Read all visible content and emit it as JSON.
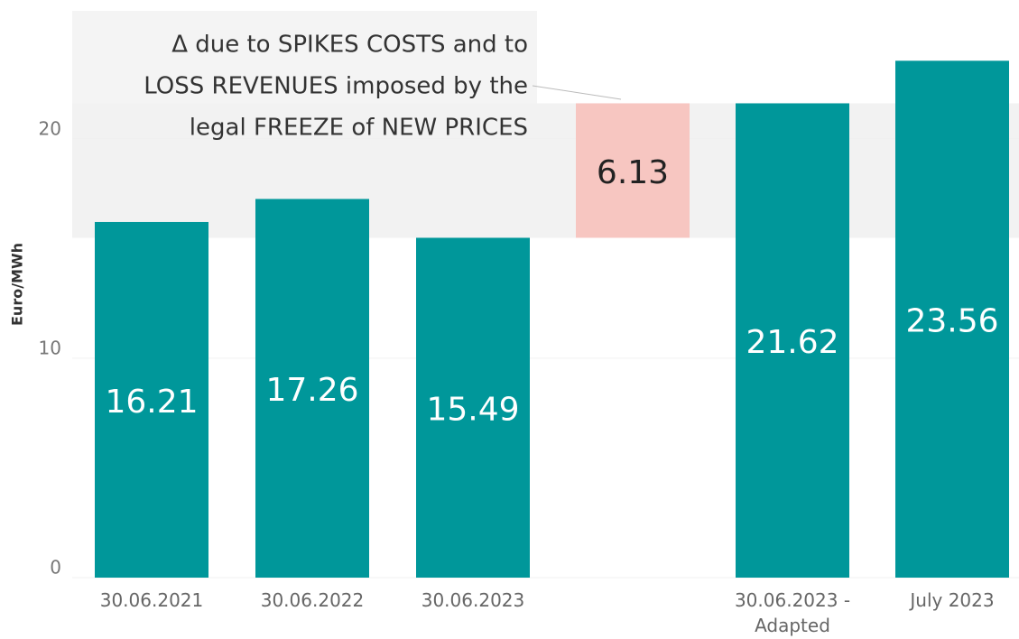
{
  "chart_data": {
    "type": "waterfall",
    "y_label": "Euro/MWh",
    "annotation": [
      "Δ due to SPIKES COSTS and to",
      "LOSS REVENUES imposed by the",
      "legal FREEZE of NEW PRICES"
    ],
    "categories": [
      "30.06.2021",
      "30.06.2022",
      "30.06.2023",
      null,
      "30.06.2023 - Adapted",
      "July 2023"
    ],
    "values": [
      16.21,
      17.26,
      15.49,
      6.13,
      21.62,
      23.56
    ],
    "colors": [
      "#00979a",
      "#00979a",
      "#00979a",
      "#f7c6c1",
      "#00979a",
      "#00979a"
    ],
    "ylim": [
      0,
      26
    ],
    "yticks": [
      0,
      10,
      20
    ],
    "grid": true
  }
}
